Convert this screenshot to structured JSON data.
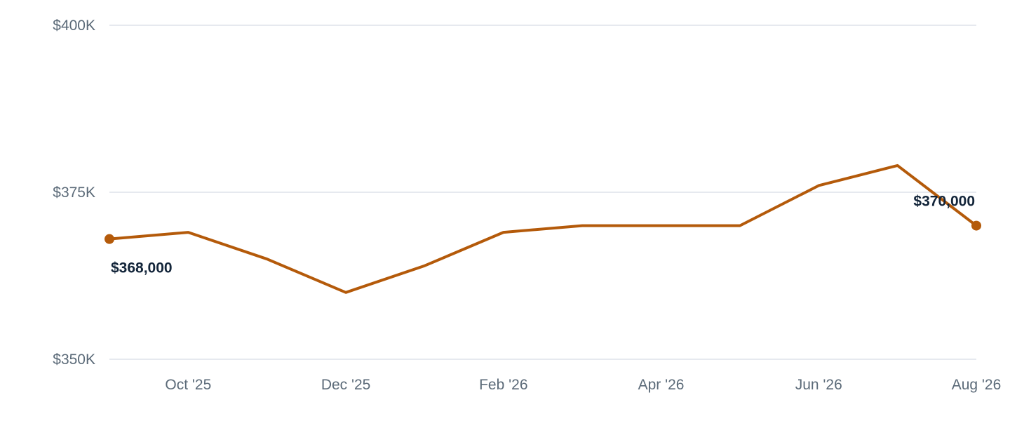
{
  "chart_data": {
    "type": "line",
    "x": [
      "2025-09-01",
      "2025-10-01",
      "2025-11-01",
      "2025-12-01",
      "2026-01-01",
      "2026-02-01",
      "2026-03-01",
      "2026-04-01",
      "2026-05-01",
      "2026-06-01",
      "2026-07-01",
      "2026-08-01"
    ],
    "series": [
      {
        "values": [
          368000,
          369000,
          365000,
          360000,
          364000,
          369000,
          370000,
          370000,
          370000,
          376000,
          379000,
          370000
        ],
        "color": "#b45a0a"
      }
    ],
    "ylim": [
      350000,
      400000
    ],
    "yticks": [
      {
        "value": 350000,
        "label": "$350K"
      },
      {
        "value": 375000,
        "label": "$375K"
      },
      {
        "value": 400000,
        "label": "$400K"
      }
    ],
    "xticks": [
      {
        "index": 1,
        "label": "Oct '25"
      },
      {
        "index": 3,
        "label": "Dec '25"
      },
      {
        "index": 5,
        "label": "Feb '26"
      },
      {
        "index": 7,
        "label": "Apr '26"
      },
      {
        "index": 9,
        "label": "Jun '26"
      },
      {
        "index": 11,
        "label": "Aug '26"
      }
    ],
    "annotations": [
      {
        "index": 0,
        "text": "$368,000",
        "position": "below"
      },
      {
        "index": 11,
        "text": "$370,000",
        "position": "above"
      }
    ],
    "grid": true,
    "legend": "none",
    "text_color": "#5b6a78",
    "label_color": "#13253a",
    "grid_color": "#dde2ea"
  }
}
